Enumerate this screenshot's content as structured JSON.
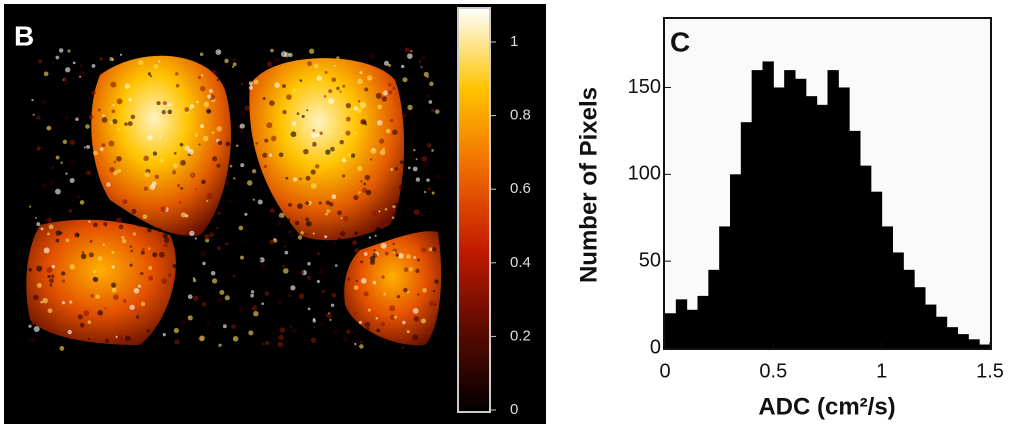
{
  "chart_data": [
    {
      "type": "image",
      "label": "B",
      "colormap": [
        "#000000",
        "#5a0a00",
        "#c21a00",
        "#f06a00",
        "#ffc400",
        "#ffffff"
      ],
      "clim": [
        0,
        1
      ],
      "cticks": [
        0,
        0.2,
        0.4,
        0.6,
        0.8,
        1
      ]
    },
    {
      "type": "histogram",
      "label": "C",
      "xlabel": "ADC (cm²/s)",
      "ylabel": "Number of Pixels",
      "color": "#000000",
      "bins": [
        0,
        0.05,
        0.1,
        0.15,
        0.2,
        0.25,
        0.3,
        0.35,
        0.4,
        0.45,
        0.5,
        0.55,
        0.6,
        0.65,
        0.7,
        0.75,
        0.8,
        0.85,
        0.9,
        0.95,
        1,
        1.05,
        1.1,
        1.15,
        1.2,
        1.25,
        1.3,
        1.35,
        1.4,
        1.45,
        1.5
      ],
      "values": [
        20,
        28,
        22,
        30,
        45,
        70,
        100,
        130,
        160,
        165,
        150,
        160,
        155,
        145,
        140,
        160,
        150,
        125,
        105,
        90,
        70,
        55,
        45,
        35,
        25,
        18,
        12,
        8,
        5,
        2
      ],
      "xlim": [
        0,
        1.5
      ],
      "xticks": [
        0,
        0.5,
        1,
        1.5
      ],
      "ylim": [
        0,
        190
      ],
      "yticks": [
        0,
        50,
        100,
        150
      ]
    }
  ]
}
